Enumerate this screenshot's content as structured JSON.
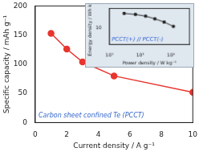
{
  "chart_data": [
    {
      "type": "line",
      "x_label": "Current density / A g⁻¹",
      "y_label": "Specific capacity / mAh g⁻¹",
      "x": [
        1,
        2,
        3,
        5,
        10
      ],
      "values": [
        153,
        126,
        104,
        80,
        52
      ],
      "color": "#e8352e",
      "marker": "circle",
      "xlim": [
        0,
        10
      ],
      "xticks": [
        0,
        2,
        4,
        6,
        8,
        10
      ],
      "ylim": [
        0,
        200
      ],
      "yticks": [
        0,
        50,
        100,
        150,
        200
      ],
      "grid": false,
      "annotation": "Carbon sheet confined Te (PCCT)"
    },
    {
      "type": "line",
      "x_label": "Power density / W kg⁻¹",
      "y_label": "Energy density / Wh kg⁻¹",
      "log": true,
      "x": [
        300,
        700,
        1500,
        3000,
        6000,
        12000
      ],
      "values": [
        28,
        26,
        23,
        19,
        15,
        11
      ],
      "color": "#222222",
      "marker": "square",
      "xlim": [
        100,
        40000
      ],
      "xticks": [
        {
          "value": 100,
          "label": "10²"
        },
        {
          "value": 1000,
          "label": "10³"
        },
        {
          "value": 10000,
          "label": "10⁴"
        }
      ],
      "ylim": [
        3,
        40
      ],
      "yticks": [
        10
      ],
      "grid": false,
      "annotation": "PCCT(+) // PCCT(-)"
    }
  ]
}
